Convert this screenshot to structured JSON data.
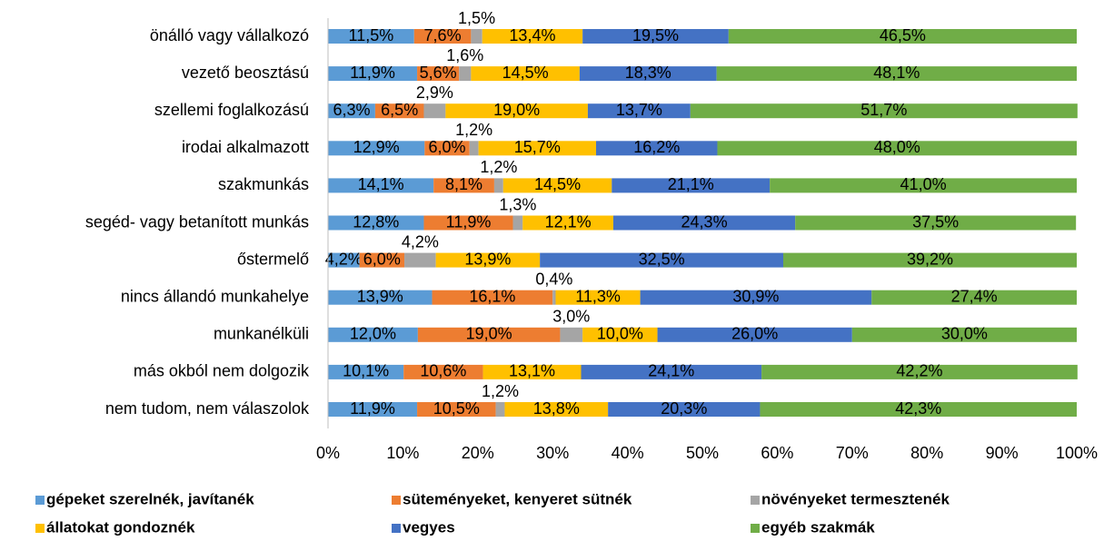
{
  "chart_data": {
    "type": "stacked_bar_horizontal",
    "categories": [
      "önálló vagy vállalkozó",
      "vezető beosztású",
      "szellemi foglalkozású",
      "irodai alkalmazott",
      "szakmunkás",
      "segéd- vagy betanított munkás",
      "őstermelő",
      "nincs állandó munkahelye",
      "munkanélküli",
      "más okból nem dolgozik",
      "nem tudom, nem válaszolok"
    ],
    "series": [
      {
        "name": "gépeket szerelnék, javítanék",
        "color": "#5b9bd5",
        "values": [
          11.5,
          11.9,
          6.3,
          12.9,
          14.1,
          12.8,
          4.2,
          13.9,
          12.0,
          10.1,
          11.9
        ],
        "value_labels": [
          "11,5%",
          "11,9%",
          "6,3%",
          "12,9%",
          "14,1%",
          "12,8%",
          "4,2%",
          "13,9%",
          "12,0%",
          "10,1%",
          "11,9%"
        ]
      },
      {
        "name": "süteményeket, kenyeret sütnék",
        "color": "#ed7d31",
        "values": [
          7.6,
          5.6,
          6.5,
          6.0,
          8.1,
          11.9,
          6.0,
          16.1,
          19.0,
          10.6,
          10.5
        ],
        "value_labels": [
          "7,6%",
          "5,6%",
          "6,5%",
          "6,0%",
          "8,1%",
          "11,9%",
          "6,0%",
          "16,1%",
          "19,0%",
          "10,6%",
          "10,5%"
        ]
      },
      {
        "name": "növényeket termesztenék",
        "color": "#a5a5a5",
        "values": [
          1.5,
          1.6,
          2.9,
          1.2,
          1.2,
          1.3,
          4.2,
          0.4,
          3.0,
          0,
          1.2
        ],
        "value_labels": [
          "1,5%",
          "1,6%",
          "2,9%",
          "1,2%",
          "1,2%",
          "1,3%",
          "4,2%",
          "0,4%",
          "3,0%",
          null,
          "1,2%"
        ]
      },
      {
        "name": "állatokat gondoznék",
        "color": "#ffc000",
        "values": [
          13.4,
          14.5,
          19.0,
          15.7,
          14.5,
          12.1,
          13.9,
          11.3,
          10.0,
          13.1,
          13.8
        ],
        "value_labels": [
          "13,4%",
          "14,5%",
          "19,0%",
          "15,7%",
          "14,5%",
          "12,1%",
          "13,9%",
          "11,3%",
          "10,0%",
          "13,1%",
          "13,8%"
        ]
      },
      {
        "name": "vegyes",
        "color": "#4472c4",
        "values": [
          19.5,
          18.3,
          13.7,
          16.2,
          21.1,
          24.3,
          32.5,
          30.9,
          26.0,
          24.1,
          20.3
        ],
        "value_labels": [
          "19,5%",
          "18,3%",
          "13,7%",
          "16,2%",
          "21,1%",
          "24,3%",
          "32,5%",
          "30,9%",
          "26,0%",
          "24,1%",
          "20,3%"
        ]
      },
      {
        "name": "egyéb szakmák",
        "color": "#70ad47",
        "values": [
          46.5,
          48.1,
          51.7,
          48.0,
          41.0,
          37.5,
          39.2,
          27.4,
          30.0,
          42.2,
          42.3
        ],
        "value_labels": [
          "46,5%",
          "48,1%",
          "51,7%",
          "48,0%",
          "41,0%",
          "37,5%",
          "39,2%",
          "27,4%",
          "30,0%",
          "42,2%",
          "42,3%"
        ]
      }
    ],
    "xlim": [
      0,
      100
    ],
    "xticks": [
      {
        "value": 0,
        "label": "0%"
      },
      {
        "value": 10,
        "label": "10%"
      },
      {
        "value": 20,
        "label": "20%"
      },
      {
        "value": 30,
        "label": "30%"
      },
      {
        "value": 40,
        "label": "40%"
      },
      {
        "value": 50,
        "label": "50%"
      },
      {
        "value": 60,
        "label": "60%"
      },
      {
        "value": 70,
        "label": "70%"
      },
      {
        "value": 80,
        "label": "80%"
      },
      {
        "value": 90,
        "label": "90%"
      },
      {
        "value": 100,
        "label": "100%"
      }
    ],
    "grid": false,
    "legend": "bottom"
  }
}
